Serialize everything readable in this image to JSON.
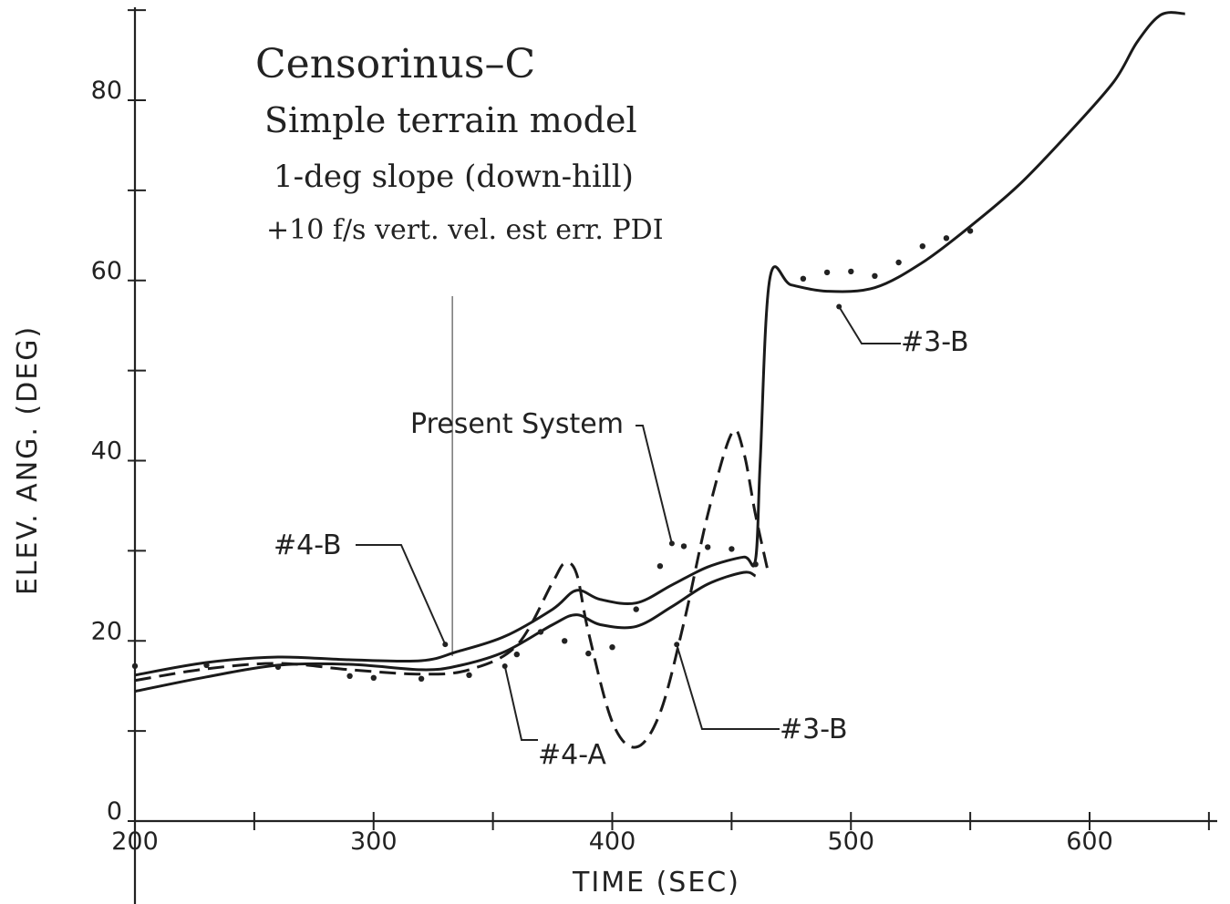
{
  "chart_data": {
    "type": "line",
    "notes": [
      "Censorinus–C",
      "Simple terrain model",
      "1-deg slope (down-hill)",
      "+10 f/s vert. vel. est err. PDI"
    ],
    "xlabel": "TIME (SEC)",
    "ylabel": "ELEV. ANG. (DEG)",
    "xlim": [
      200,
      640
    ],
    "ylim": [
      0,
      90
    ],
    "x_ticks": [
      200,
      250,
      300,
      350,
      400,
      450,
      500,
      550,
      600,
      650
    ],
    "x_tick_labels": [
      "200",
      "300",
      "400",
      "500",
      "600"
    ],
    "x_tick_label_values": [
      200,
      300,
      400,
      500,
      600
    ],
    "y_ticks": [
      0,
      10,
      20,
      30,
      40,
      50,
      60,
      70,
      80,
      90
    ],
    "y_tick_labels": [
      "0",
      "20",
      "40",
      "60",
      "80"
    ],
    "y_tick_label_values": [
      0,
      20,
      40,
      60,
      80
    ],
    "grid": false,
    "present_system_marker_x": 333,
    "series": [
      {
        "style": "solid",
        "x": [
          200,
          230,
          260,
          290,
          320,
          335,
          355,
          375,
          385,
          395,
          410,
          425,
          440,
          455,
          460,
          462,
          466,
          475,
          490,
          510,
          530,
          550,
          570,
          590,
          610,
          620,
          630,
          640
        ],
        "y": [
          16.2,
          17.6,
          18.2,
          17.9,
          17.8,
          18.8,
          20.5,
          23.5,
          25.6,
          24.6,
          24.2,
          26.2,
          28.2,
          29.3,
          29.0,
          40,
          60.2,
          59.5,
          58.8,
          59.2,
          62,
          66,
          70.5,
          76,
          82,
          86.5,
          89.5,
          89.6
        ]
      },
      {
        "style": "solid",
        "x": [
          200,
          230,
          260,
          290,
          320,
          335,
          355,
          375,
          385,
          395,
          410,
          425,
          440,
          455,
          460
        ],
        "y": [
          14.4,
          16.0,
          17.3,
          17.4,
          16.8,
          17.2,
          18.8,
          21.8,
          22.9,
          21.8,
          21.6,
          23.8,
          26.3,
          27.6,
          27.2
        ]
      },
      {
        "style": "dashed",
        "x": [
          200,
          230,
          260,
          290,
          320,
          340,
          360,
          375,
          380,
          385,
          390,
          400,
          410,
          420,
          430,
          440,
          450,
          455,
          460,
          465
        ],
        "y": [
          15.6,
          16.9,
          17.5,
          16.8,
          16.3,
          16.8,
          19.5,
          26.5,
          28.6,
          27.5,
          21,
          11,
          8.2,
          12,
          22,
          34,
          43,
          41,
          34,
          28
        ]
      },
      {
        "style": "dotted",
        "x": [
          200,
          230,
          260,
          290,
          300,
          320,
          340,
          360,
          370,
          380,
          390,
          400,
          410,
          420,
          430,
          440,
          450,
          460
        ],
        "y": [
          17.2,
          17.3,
          17.1,
          16.1,
          15.9,
          15.8,
          16.2,
          18.5,
          21.0,
          20.0,
          18.6,
          19.3,
          23.5,
          28.3,
          30.5,
          30.4,
          30.2,
          28.5
        ]
      },
      {
        "style": "dotted",
        "x": [
          480,
          490,
          500,
          510,
          520,
          530,
          540,
          550
        ],
        "y": [
          60.2,
          60.9,
          61.0,
          60.5,
          62.0,
          63.8,
          64.7,
          65.5
        ]
      }
    ],
    "annotations": [
      {
        "text": "Present System",
        "x": 425,
        "y": 30
      },
      {
        "text": "#4-B",
        "x": 330,
        "y": 19
      },
      {
        "text": "#4-A",
        "x": 355,
        "y": 18
      },
      {
        "text": "#3-B",
        "x": 427,
        "y": 20
      },
      {
        "text": "#3-B",
        "x": 495,
        "y": 57.5
      }
    ]
  }
}
